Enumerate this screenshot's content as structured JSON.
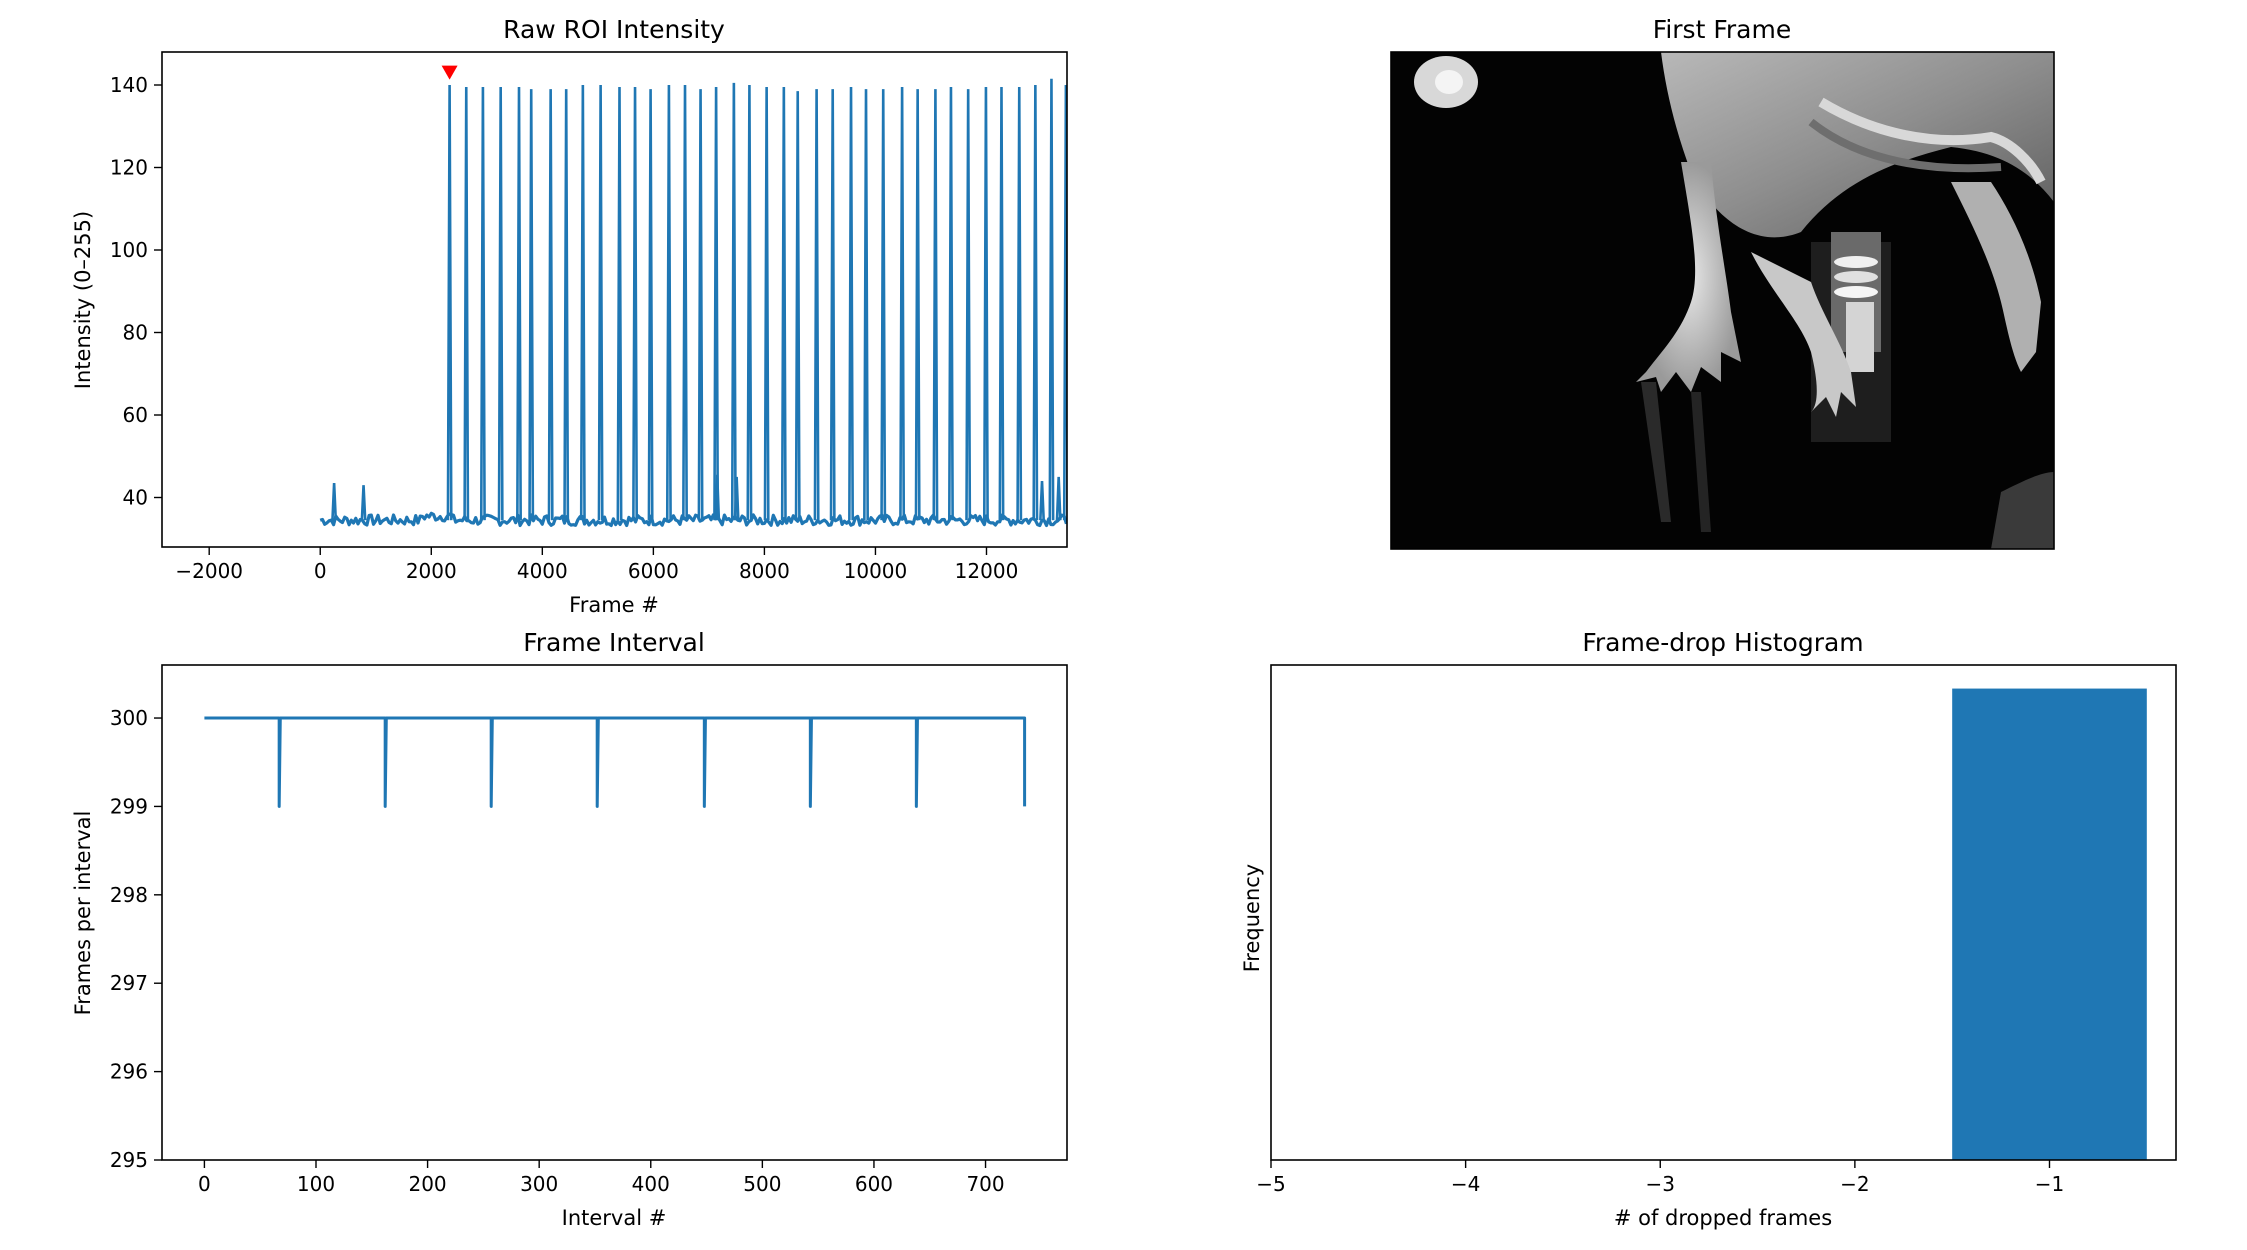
{
  "figure": {
    "background": "#ffffff",
    "series_color": "#1f77b4",
    "marker_color": "#ff0000"
  },
  "panels": {
    "roi": {
      "title": "Raw ROI Intensity",
      "xlabel": "Frame #",
      "ylabel": "Intensity (0–255)",
      "xticks": [
        "−2000",
        "0",
        "2000",
        "4000",
        "6000",
        "8000",
        "10000",
        "12000"
      ],
      "yticks": [
        "40",
        "60",
        "80",
        "100",
        "120",
        "140"
      ]
    },
    "frame": {
      "title": "First Frame"
    },
    "interval": {
      "title": "Frame Interval",
      "xlabel": "Interval #",
      "ylabel": "Frames per interval",
      "xticks": [
        "0",
        "100",
        "200",
        "300",
        "400",
        "500",
        "600",
        "700"
      ],
      "yticks": [
        "295",
        "296",
        "297",
        "298",
        "299",
        "300"
      ]
    },
    "histogram": {
      "title": "Frame-drop Histogram",
      "xlabel": "# of dropped frames",
      "ylabel": "Frequency",
      "xticks": [
        "−5",
        "−4",
        "−3",
        "−2",
        "−1"
      ]
    }
  },
  "chart_data": [
    {
      "type": "line",
      "title": "Raw ROI Intensity",
      "xlabel": "Frame #",
      "ylabel": "Intensity (0–255)",
      "xlim": [
        -2850,
        13450
      ],
      "ylim": [
        28,
        148
      ],
      "baseline": {
        "x_start": 0,
        "x_end": 13450,
        "level": 34.5
      },
      "early_spikes": [
        {
          "x": 250,
          "y": 43.5
        },
        {
          "x": 780,
          "y": 43
        }
      ],
      "late_small_spikes": [
        {
          "x": 7150,
          "y": 45.5
        },
        {
          "x": 7500,
          "y": 45
        },
        {
          "x": 13000,
          "y": 44
        },
        {
          "x": 13300,
          "y": 45
        }
      ],
      "peaks": {
        "x": [
          2330,
          2630,
          2930,
          3250,
          3580,
          3800,
          4150,
          4430,
          4730,
          5050,
          5390,
          5670,
          5950,
          6280,
          6570,
          6850,
          7130,
          7450,
          7730,
          8040,
          8350,
          8600,
          8940,
          9230,
          9560,
          9830,
          10140,
          10480,
          10760,
          11080,
          11360,
          11670,
          11990,
          12270,
          12590,
          12880,
          13170,
          13430
        ],
        "y": [
          140,
          139.5,
          139.5,
          139.5,
          139.5,
          139,
          139,
          139,
          140,
          140,
          139.5,
          139.5,
          139,
          140,
          140,
          139,
          139.5,
          140.5,
          140,
          139.5,
          139.5,
          138.5,
          139,
          139,
          139.5,
          139,
          139,
          139.5,
          139,
          139,
          139.5,
          139,
          139.5,
          139.5,
          139.5,
          140,
          141.5,
          140
        ]
      },
      "marker": {
        "x": 2330,
        "y": 143,
        "shape": "triangle-down"
      }
    },
    {
      "type": "line",
      "title": "Frame Interval",
      "xlabel": "Interval #",
      "ylabel": "Frames per interval",
      "xlim": [
        -38,
        773
      ],
      "ylim": [
        295,
        300.6
      ],
      "baseline": 300,
      "x_end": 735,
      "dips": [
        {
          "x": 67,
          "y": 299
        },
        {
          "x": 162,
          "y": 299
        },
        {
          "x": 257,
          "y": 299
        },
        {
          "x": 352,
          "y": 299
        },
        {
          "x": 448,
          "y": 299
        },
        {
          "x": 543,
          "y": 299
        },
        {
          "x": 638,
          "y": 299
        },
        {
          "x": 735,
          "y": 299
        }
      ]
    },
    {
      "type": "bar",
      "title": "Frame-drop Histogram",
      "xlabel": "# of dropped frames",
      "ylabel": "Frequency",
      "xlim": [
        -5,
        -0.35
      ],
      "ylim": [
        0,
        8.4
      ],
      "bins": [
        {
          "x_left": -1.5,
          "x_right": -0.5,
          "count": 8
        }
      ]
    }
  ]
}
